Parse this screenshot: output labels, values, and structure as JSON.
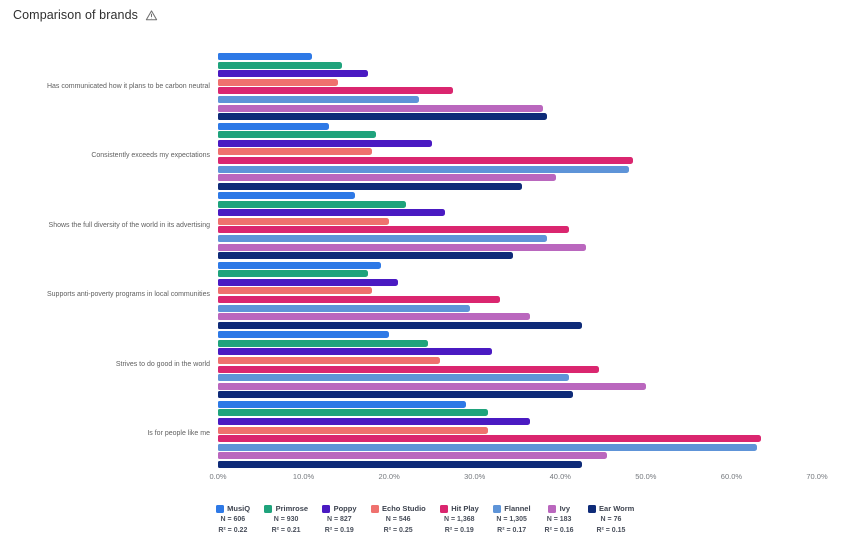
{
  "header": {
    "title": "Comparison of brands",
    "warning_icon": "warning-triangle"
  },
  "chart_data": {
    "type": "bar",
    "orientation": "horizontal",
    "title": "Comparison of brands",
    "xlim": [
      0,
      70
    ],
    "x_tick_labels": [
      "0.0%",
      "10.0%",
      "20.0%",
      "30.0%",
      "40.0%",
      "50.0%",
      "60.0%",
      "70.0%"
    ],
    "grid": false,
    "legend_position": "bottom",
    "categories": [
      "Has communicated how it plans to be carbon neutral",
      "Consistently exceeds my expectations",
      "Shows the full diversity of the world in its advertising",
      "Supports anti-poverty programs in local communities",
      "Strives to do good in the world",
      "Is for people like me"
    ],
    "series": [
      {
        "name": "MusiQ",
        "color": "#2e79e6",
        "n_label": "N = 606",
        "r2_label": "R² = 0.22",
        "values": [
          11,
          13,
          16,
          19,
          20,
          29
        ]
      },
      {
        "name": "Primrose",
        "color": "#1fa37c",
        "n_label": "N = 930",
        "r2_label": "R² = 0.21",
        "values": [
          14.5,
          18.5,
          22,
          17.5,
          24.5,
          31.5
        ]
      },
      {
        "name": "Poppy",
        "color": "#4a1ac2",
        "n_label": "N = 827",
        "r2_label": "R² = 0.19",
        "values": [
          17.5,
          25,
          26.5,
          21,
          32,
          36.5
        ]
      },
      {
        "name": "Echo Studio",
        "color": "#ef716e",
        "n_label": "N = 546",
        "r2_label": "R² = 0.25",
        "values": [
          14,
          18,
          20,
          18,
          26,
          31.5
        ]
      },
      {
        "name": "Hit Play",
        "color": "#da266f",
        "n_label": "N = 1,368",
        "r2_label": "R² = 0.19",
        "values": [
          27.5,
          48.5,
          41,
          33,
          44.5,
          63.5
        ]
      },
      {
        "name": "Flannel",
        "color": "#5e94d8",
        "n_label": "N = 1,305",
        "r2_label": "R² = 0.17",
        "values": [
          23.5,
          48,
          38.5,
          29.5,
          41,
          63
        ]
      },
      {
        "name": "Ivy",
        "color": "#ba67be",
        "n_label": "N = 183",
        "r2_label": "R² = 0.16",
        "values": [
          38,
          39.5,
          43,
          36.5,
          50,
          45.5
        ]
      },
      {
        "name": "Ear Worm",
        "color": "#0e2b78",
        "n_label": "N = 76",
        "r2_label": "R² = 0.15",
        "values": [
          38.5,
          35.5,
          34.5,
          42.5,
          41.5,
          42.5
        ]
      }
    ]
  }
}
